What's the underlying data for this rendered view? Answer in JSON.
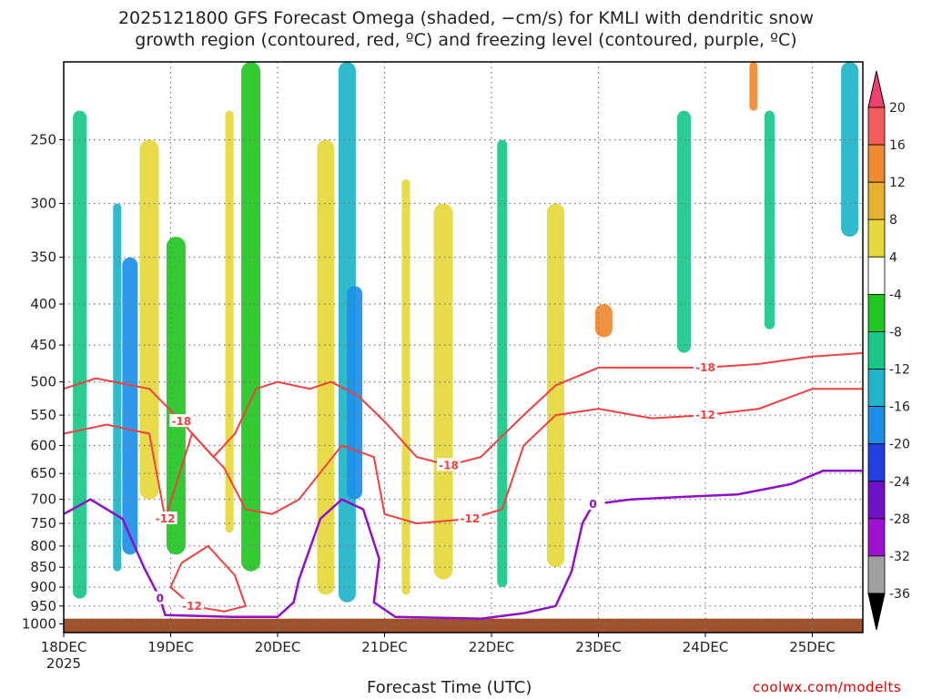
{
  "header": {
    "title_line1": "2025121800 GFS Forecast Omega (shaded, −cm/s) for KMLI with dendritic snow",
    "title_line2": "growth region (contoured, red, ºC) and freezing level (contoured, purple, ºC)"
  },
  "footer": {
    "x_axis_label": "Forecast Time (UTC)",
    "credit": "coolwx.com/modelts"
  },
  "colors": {
    "dgz_contour": "#f04040",
    "freezing_contour": "#9010c8",
    "terrain": "#a0522d",
    "grid": "#777777"
  },
  "chart_data": {
    "type": "heatmap",
    "title": "2025121800 GFS Forecast Omega (shaded, −cm/s) for KMLI with dendritic snow growth region (contoured, red, ºC) and freezing level (contoured, purple, ºC)",
    "xlabel": "Forecast Time (UTC)",
    "ylabel": "",
    "x_ticks": [
      "18DEC",
      "19DEC",
      "20DEC",
      "21DEC",
      "22DEC",
      "23DEC",
      "24DEC",
      "25DEC"
    ],
    "x_start_label_year": "2025",
    "x_range_days": [
      0,
      7.5
    ],
    "y_ticks": [
      "250",
      "300",
      "350",
      "400",
      "450",
      "500",
      "550",
      "600",
      "650",
      "700",
      "750",
      "800",
      "850",
      "900",
      "950",
      "1000"
    ],
    "y_range_hPa": [
      200,
      1025
    ],
    "colorbar": {
      "labels": [
        "20",
        "16",
        "12",
        "8",
        "4",
        "-4",
        "-8",
        "-12",
        "-16",
        "-20",
        "-24",
        "-28",
        "-32",
        "-36"
      ],
      "colors": [
        "#f0406e",
        "#f25c5c",
        "#ee8a30",
        "#e6b030",
        "#e6d83a",
        "#ffffff",
        "#22c622",
        "#18c888",
        "#20b4c8",
        "#1c90e8",
        "#2040e0",
        "#7010c8",
        "#a010d0",
        "#a0a0a0"
      ]
    },
    "omega_bands": [
      {
        "day": 0.15,
        "p_top": 230,
        "p_bot": 930,
        "value": -10
      },
      {
        "day": 0.5,
        "p_top": 300,
        "p_bot": 860,
        "value": -14
      },
      {
        "day": 0.62,
        "p_top": 350,
        "p_bot": 820,
        "value": -18
      },
      {
        "day": 0.8,
        "p_top": 250,
        "p_bot": 700,
        "value": 6
      },
      {
        "day": 1.05,
        "p_top": 330,
        "p_bot": 820,
        "value": -6
      },
      {
        "day": 1.55,
        "p_top": 230,
        "p_bot": 770,
        "value": 7
      },
      {
        "day": 1.75,
        "p_top": 200,
        "p_bot": 860,
        "value": -6
      },
      {
        "day": 2.45,
        "p_top": 250,
        "p_bot": 920,
        "value": 5
      },
      {
        "day": 2.65,
        "p_top": 200,
        "p_bot": 940,
        "value": -12
      },
      {
        "day": 2.72,
        "p_top": 380,
        "p_bot": 700,
        "value": -18
      },
      {
        "day": 3.2,
        "p_top": 280,
        "p_bot": 920,
        "value": 7
      },
      {
        "day": 3.55,
        "p_top": 300,
        "p_bot": 880,
        "value": 6
      },
      {
        "day": 4.1,
        "p_top": 250,
        "p_bot": 900,
        "value": -8
      },
      {
        "day": 4.6,
        "p_top": 300,
        "p_bot": 850,
        "value": 5
      },
      {
        "day": 5.05,
        "p_top": 400,
        "p_bot": 440,
        "value": 12
      },
      {
        "day": 5.8,
        "p_top": 230,
        "p_bot": 460,
        "value": -10
      },
      {
        "day": 6.45,
        "p_top": 200,
        "p_bot": 230,
        "value": 14
      },
      {
        "day": 6.6,
        "p_top": 230,
        "p_bot": 430,
        "value": -8
      },
      {
        "day": 7.35,
        "p_top": 200,
        "p_bot": 330,
        "value": -12
      }
    ],
    "dgz_contours": [
      {
        "label": "-18",
        "points": [
          [
            0,
            510
          ],
          [
            0.3,
            495
          ],
          [
            0.8,
            510
          ],
          [
            1.1,
            560
          ],
          [
            1.4,
            620
          ],
          [
            1.6,
            580
          ],
          [
            1.8,
            510
          ],
          [
            2.0,
            500
          ],
          [
            2.3,
            510
          ],
          [
            2.5,
            500
          ],
          [
            2.75,
            520
          ],
          [
            3.0,
            560
          ],
          [
            3.3,
            620
          ],
          [
            3.6,
            635
          ],
          [
            3.9,
            620
          ],
          [
            4.3,
            550
          ],
          [
            4.6,
            505
          ],
          [
            5.0,
            480
          ],
          [
            5.5,
            480
          ],
          [
            6.0,
            480
          ],
          [
            6.5,
            475
          ],
          [
            7.0,
            465
          ],
          [
            7.5,
            460
          ]
        ]
      },
      {
        "label": "-12",
        "points": [
          [
            0,
            580
          ],
          [
            0.4,
            565
          ],
          [
            0.8,
            580
          ],
          [
            0.95,
            740
          ],
          [
            1.2,
            580
          ],
          [
            1.5,
            640
          ],
          [
            1.7,
            720
          ],
          [
            1.95,
            730
          ],
          [
            2.2,
            700
          ],
          [
            2.6,
            600
          ],
          [
            2.9,
            620
          ],
          [
            3.0,
            730
          ],
          [
            3.3,
            750
          ],
          [
            3.8,
            740
          ],
          [
            4.1,
            720
          ],
          [
            4.3,
            600
          ],
          [
            4.6,
            550
          ],
          [
            5.0,
            540
          ],
          [
            5.5,
            555
          ],
          [
            6.0,
            550
          ],
          [
            6.5,
            540
          ],
          [
            7.0,
            510
          ],
          [
            7.5,
            510
          ]
        ]
      },
      {
        "label": "-12",
        "points": [
          [
            1.1,
            840
          ],
          [
            1.35,
            800
          ],
          [
            1.6,
            870
          ],
          [
            1.7,
            950
          ],
          [
            1.5,
            965
          ],
          [
            1.2,
            950
          ],
          [
            1.0,
            900
          ],
          [
            1.1,
            840
          ]
        ]
      }
    ],
    "freezing_contour": {
      "label": "0",
      "points": [
        [
          0,
          730
        ],
        [
          0.25,
          700
        ],
        [
          0.55,
          740
        ],
        [
          0.75,
          850
        ],
        [
          0.9,
          930
        ],
        [
          0.95,
          975
        ],
        [
          1.6,
          980
        ],
        [
          2.0,
          980
        ],
        [
          2.15,
          940
        ],
        [
          2.2,
          880
        ],
        [
          2.4,
          740
        ],
        [
          2.6,
          700
        ],
        [
          2.8,
          720
        ],
        [
          2.95,
          830
        ],
        [
          2.9,
          940
        ],
        [
          3.1,
          980
        ],
        [
          3.9,
          985
        ],
        [
          4.3,
          970
        ],
        [
          4.6,
          950
        ],
        [
          4.75,
          860
        ],
        [
          4.85,
          750
        ],
        [
          4.95,
          710
        ],
        [
          5.3,
          700
        ],
        [
          5.8,
          695
        ],
        [
          6.3,
          690
        ],
        [
          6.8,
          670
        ],
        [
          7.1,
          645
        ],
        [
          7.5,
          645
        ]
      ]
    },
    "terrain_surface_hPa": 985
  }
}
